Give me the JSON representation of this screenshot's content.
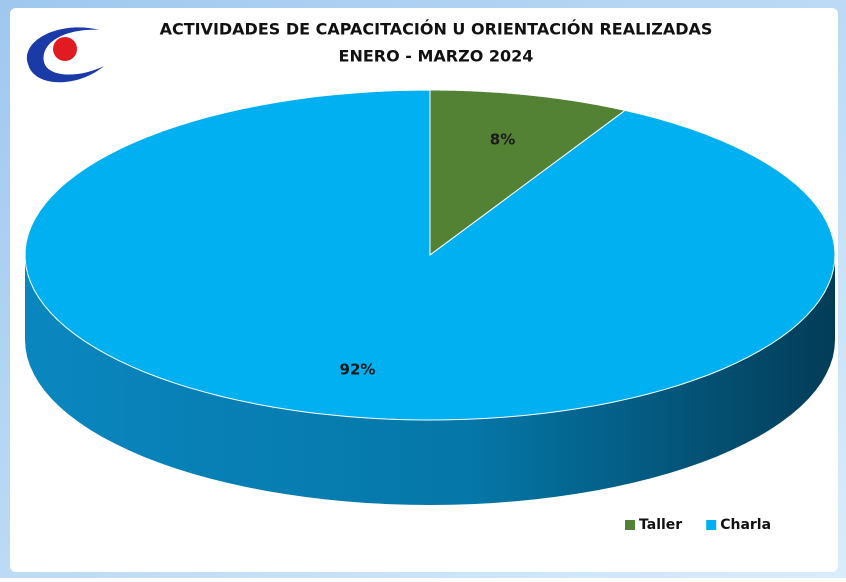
{
  "chart_data": {
    "type": "pie3d",
    "title": "ACTIVIDADES DE CAPACITACIÓN U ORIENTACIÓN REALIZADAS",
    "subtitle": "ENERO - MARZO 2024",
    "categories": [
      "Taller",
      "Charla"
    ],
    "values": [
      8,
      92
    ],
    "value_labels": [
      "8%",
      "92%"
    ],
    "colors": [
      "#548235",
      "#00b0f0"
    ],
    "legend": "bottom-right"
  }
}
